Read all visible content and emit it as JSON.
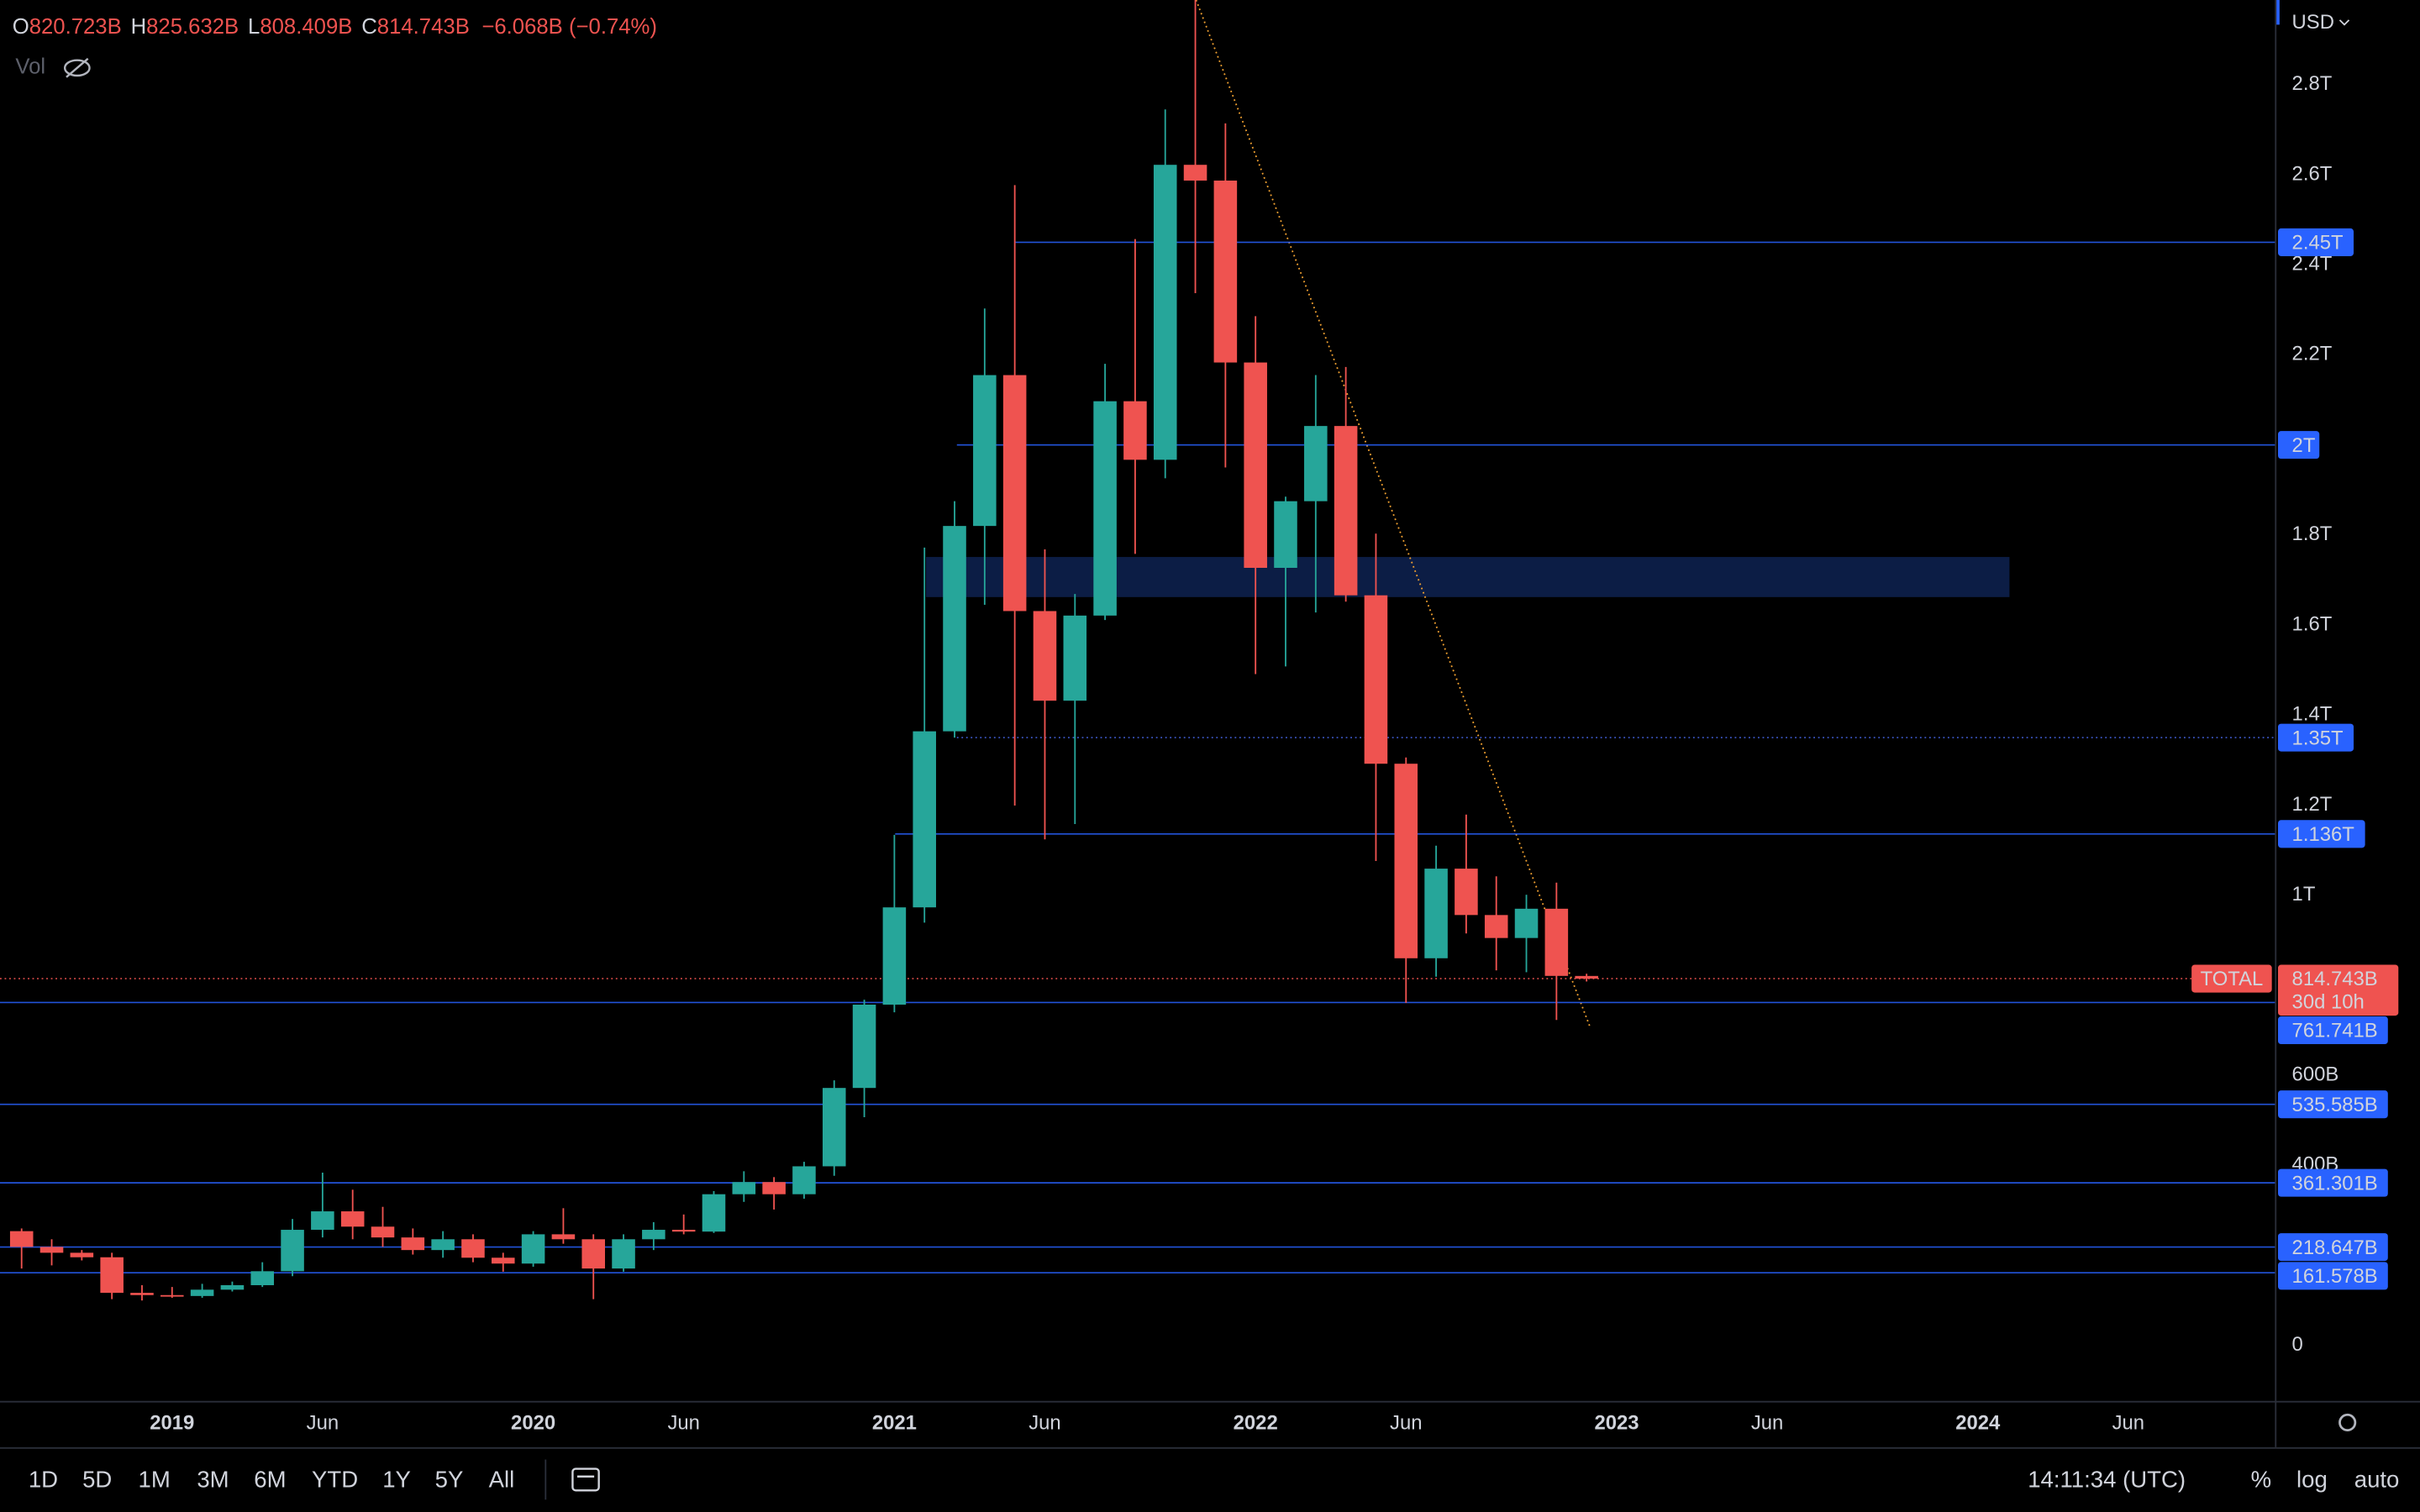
{
  "chart_data": {
    "type": "candlestick",
    "symbol": "TOTAL",
    "currency": "USD",
    "x": [
      "2018-08",
      "2018-09",
      "2018-10",
      "2018-11",
      "2018-12",
      "2019-01",
      "2019-02",
      "2019-03",
      "2019-04",
      "2019-05",
      "2019-06",
      "2019-07",
      "2019-08",
      "2019-09",
      "2019-10",
      "2019-11",
      "2019-12",
      "2020-01",
      "2020-02",
      "2020-03",
      "2020-04",
      "2020-05",
      "2020-06",
      "2020-07",
      "2020-08",
      "2020-09",
      "2020-10",
      "2020-11",
      "2020-12",
      "2021-01",
      "2021-02",
      "2021-03",
      "2021-04",
      "2021-05",
      "2021-06",
      "2021-07",
      "2021-08",
      "2021-09",
      "2021-10",
      "2021-11",
      "2021-12",
      "2022-01",
      "2022-02",
      "2022-03",
      "2022-04",
      "2022-05",
      "2022-06",
      "2022-07",
      "2022-08",
      "2022-09",
      "2022-10",
      "2022-11",
      "2022-12"
    ],
    "open": [
      254,
      219,
      206,
      196,
      117,
      112,
      110,
      124,
      134,
      165,
      257,
      298,
      264,
      240,
      212,
      236,
      195,
      182,
      247,
      236,
      171,
      236,
      257,
      253,
      336,
      363,
      336,
      398,
      572,
      757,
      973,
      1364,
      1820,
      2155,
      1631,
      1432,
      1621,
      2097,
      1967,
      2622,
      2587,
      2183,
      1727,
      1875,
      2042,
      1666,
      1292,
      860,
      1059,
      956,
      905,
      970,
      820.723
    ],
    "high": [
      260,
      236,
      212,
      206,
      134,
      130,
      137,
      142,
      185,
      281,
      384,
      346,
      308,
      260,
      254,
      247,
      206,
      254,
      305,
      247,
      247,
      274,
      291,
      343,
      387,
      374,
      408,
      589,
      768,
      1134,
      1772,
      1875,
      2303,
      2577,
      1768,
      1669,
      2180,
      2457,
      2745,
      2990,
      2714,
      2286,
      1885,
      2155,
      2173,
      1803,
      1306,
      1110,
      1179,
      1042,
      1001,
      1028,
      825.632
    ],
    "low": [
      171,
      178,
      189,
      103,
      100,
      106,
      106,
      120,
      130,
      154,
      240,
      236,
      219,
      202,
      195,
      185,
      164,
      175,
      226,
      103,
      164,
      212,
      247,
      250,
      319,
      302,
      326,
      377,
      507,
      740,
      939,
      1350,
      1645,
      1199,
      1124,
      1158,
      1611,
      1758,
      1926,
      2337,
      1950,
      1491,
      1508,
      1628,
      1652,
      1076,
      761,
      819,
      915,
      833,
      829,
      723,
      808.409
    ],
    "close": [
      219,
      206,
      196,
      117,
      112,
      110,
      124,
      134,
      165,
      257,
      298,
      264,
      240,
      212,
      236,
      195,
      182,
      247,
      236,
      171,
      236,
      257,
      253,
      336,
      363,
      336,
      398,
      572,
      757,
      973,
      1364,
      1820,
      2155,
      1631,
      1432,
      1621,
      2097,
      1967,
      2622,
      2587,
      2183,
      1727,
      1875,
      2042,
      1666,
      1292,
      860,
      1059,
      956,
      905,
      970,
      820.811,
      814.743
    ],
    "up_color": "#26a69a",
    "down_color": "#ef5350",
    "ylim": [
      -123,
      2988
    ],
    "yticks": [
      0,
      {
        "value": 400,
        "label": "400B"
      },
      {
        "value": 600,
        "label": "600B"
      },
      {
        "value": 1000,
        "label": "1T"
      },
      {
        "value": 1200,
        "label": "1.2T"
      },
      {
        "value": 1400,
        "label": "1.4T"
      },
      {
        "value": 1600,
        "label": "1.6T"
      },
      {
        "value": 1800,
        "label": "1.8T"
      },
      {
        "value": 2200,
        "label": "2.2T"
      },
      {
        "value": 2400,
        "label": "2.4T"
      },
      {
        "value": 2600,
        "label": "2.6T"
      },
      {
        "value": 2800,
        "label": "2.8T"
      }
    ],
    "xticks": [
      {
        "value": "2019-01",
        "label": "2019"
      },
      {
        "value": "2019-06",
        "label": "Jun"
      },
      {
        "value": "2020-01",
        "label": "2020"
      },
      {
        "value": "2020-06",
        "label": "Jun"
      },
      {
        "value": "2021-01",
        "label": "2021"
      },
      {
        "value": "2021-06",
        "label": "Jun"
      },
      {
        "value": "2022-01",
        "label": "2022"
      },
      {
        "value": "2022-06",
        "label": "Jun"
      },
      {
        "value": "2023-01",
        "label": "2023"
      },
      {
        "value": "2023-06",
        "label": "Jun"
      },
      {
        "value": "2024-01",
        "label": "2024"
      },
      {
        "value": "2024-06",
        "label": "Jun"
      }
    ],
    "levels": [
      {
        "value": 2450,
        "label": "2.45T"
      },
      {
        "value": 2000,
        "label": "2T"
      },
      {
        "value": 1350,
        "label": "1.35T",
        "dotted": true
      },
      {
        "value": 1136,
        "label": "1.136T"
      },
      {
        "value": 761.741,
        "label": "761.741B"
      },
      {
        "value": 535.585,
        "label": "535.585B"
      },
      {
        "value": 361.301,
        "label": "361.301B"
      },
      {
        "value": 218.647,
        "label": "218.647B"
      },
      {
        "value": 161.578,
        "label": "161.578B"
      }
    ],
    "level_color": "#2962ff",
    "last_price": {
      "label": "814.743B",
      "countdown": "30d 10h"
    }
  },
  "legend": {
    "ohlc": [
      {
        "key": "O",
        "value": "820.723B"
      },
      {
        "key": "H",
        "value": "825.632B"
      },
      {
        "key": "L",
        "value": "808.409B"
      },
      {
        "key": "C",
        "value": "814.743B"
      }
    ],
    "change": "−6.068B (−0.74%)",
    "volume": "Vol"
  },
  "toolbar": {
    "ranges": [
      "1D",
      "5D",
      "1M",
      "3M",
      "6M",
      "YTD",
      "1Y",
      "5Y",
      "All"
    ],
    "clock": "14:11:34 (UTC)",
    "options": [
      "%",
      "log",
      "auto"
    ]
  }
}
